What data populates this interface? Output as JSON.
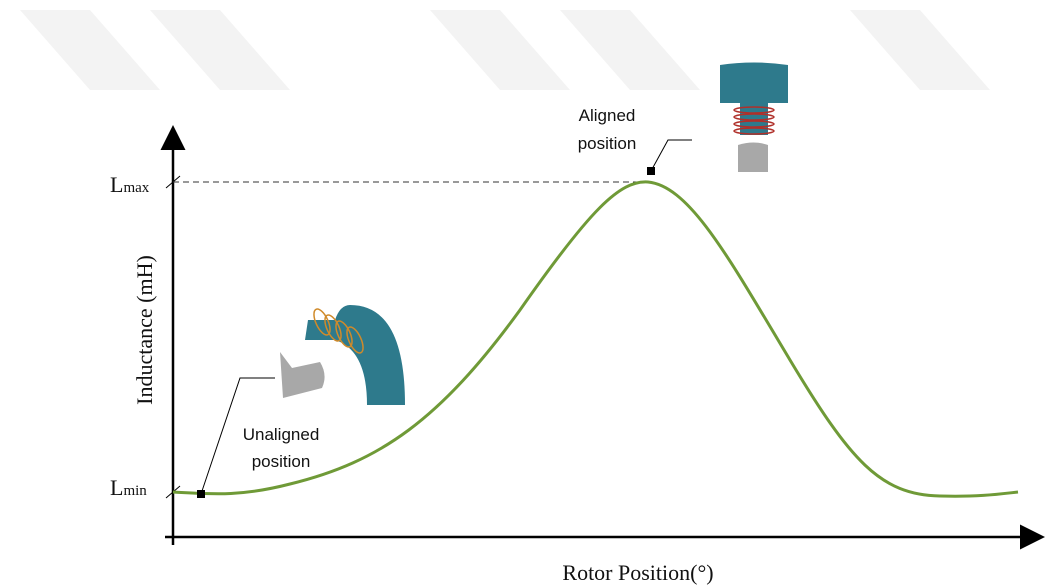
{
  "axes": {
    "y_label": "Inductance (mH)",
    "x_label": "Rotor Position(°)"
  },
  "levels": [
    {
      "symbol": "L",
      "subscript": "max"
    },
    {
      "symbol": "L",
      "subscript": "min"
    }
  ],
  "annotations": [
    {
      "lines": [
        "Aligned",
        "position"
      ]
    },
    {
      "lines": [
        "Unaligned",
        "position"
      ]
    }
  ]
}
